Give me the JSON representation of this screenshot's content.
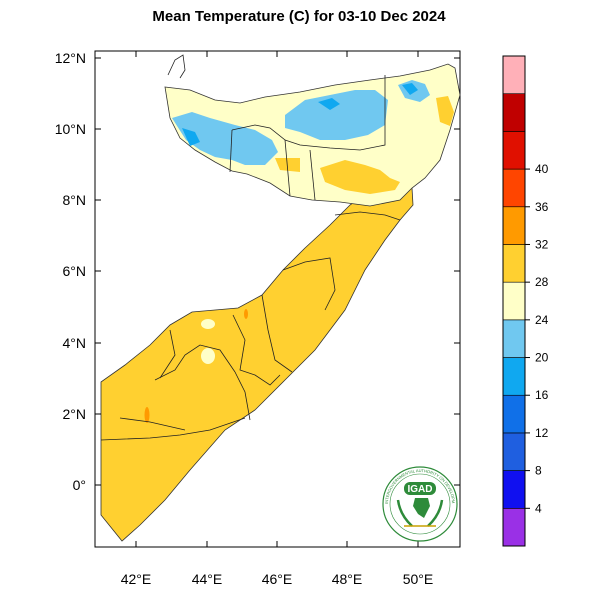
{
  "title": "Mean Temperature (C) for 03-10 Dec 2024",
  "axes": {
    "lat_ticks": [
      "12°N",
      "10°N",
      "8°N",
      "6°N",
      "4°N",
      "2°N",
      "0°"
    ],
    "lon_ticks": [
      "42°E",
      "44°E",
      "46°E",
      "48°E",
      "50°E"
    ]
  },
  "legend": {
    "colors": [
      "#9a30e6",
      "#1010f0",
      "#1f5fe0",
      "#1070e8",
      "#10a8f0",
      "#70c8f0",
      "#ffffc8",
      "#ffd030",
      "#ff9a00",
      "#ff4500",
      "#e01000",
      "#c00000",
      "#ffb0b8"
    ],
    "labels": [
      "4",
      "8",
      "12",
      "16",
      "20",
      "24",
      "28",
      "32",
      "36",
      "40"
    ]
  },
  "logo": {
    "text": "IGAD",
    "ring_text": "INTERGOVERNMENTAL AUTHORITY ON DEVELOPMENT"
  },
  "chart_data": {
    "type": "heatmap",
    "title": "Mean Temperature (C) for 03-10 Dec 2024",
    "xlabel": "",
    "ylabel": "",
    "xlim": [
      41,
      51.5
    ],
    "ylim": [
      -1.7,
      12.2
    ],
    "x_ticks": [
      42,
      44,
      46,
      48,
      50
    ],
    "y_ticks": [
      12,
      10,
      8,
      6,
      4,
      2,
      0
    ],
    "colorbar_levels": [
      4,
      8,
      12,
      16,
      20,
      24,
      28,
      32,
      36,
      40
    ],
    "colorbar_placement": "right"
  }
}
